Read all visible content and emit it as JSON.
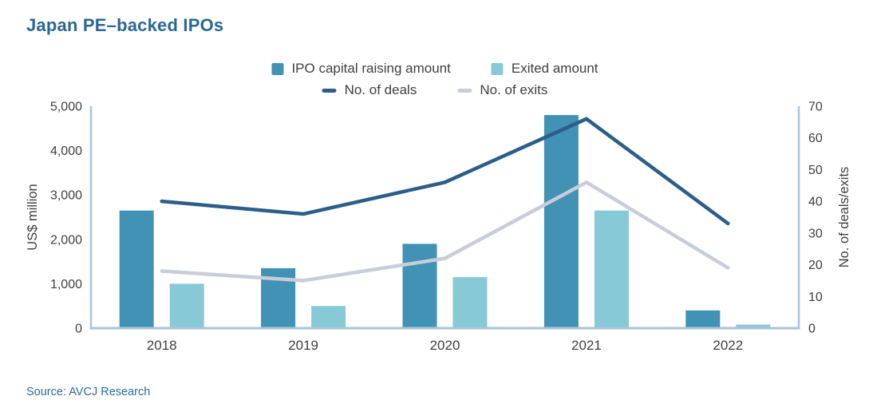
{
  "title": "Japan PE–backed IPOs",
  "source": "Source: AVCJ Research",
  "colors": {
    "title_blue": "#2b6794",
    "source_blue": "#2e6c9c",
    "text_gray": "#3f3f3f",
    "axis_line": "#a9c5d8",
    "ipo_capital_bar": "#4192b4",
    "exited_bar": "#88c9d7",
    "deals_line": "#2b5e88",
    "exits_line": "#c9cdd9"
  },
  "legend": {
    "row1": [
      {
        "label": "IPO capital raising amount",
        "swatch": "square",
        "color": "#4192b4"
      },
      {
        "label": "Exited amount",
        "swatch": "square",
        "color": "#88c9d7"
      }
    ],
    "row2": [
      {
        "label": "No. of deals",
        "swatch": "line",
        "color": "#2b5e88"
      },
      {
        "label": "No. of exits",
        "swatch": "line",
        "color": "#c9cdd9"
      }
    ]
  },
  "chart_data": {
    "type": "combo-bar-line",
    "title": "Japan PE–backed IPOs",
    "categories": [
      "2018",
      "2019",
      "2020",
      "2021",
      "2022"
    ],
    "bar_series": [
      {
        "name": "IPO capital raising amount",
        "axis": "left",
        "color": "#4192b4",
        "values": [
          2650,
          1350,
          1900,
          4800,
          400
        ]
      },
      {
        "name": "Exited amount",
        "axis": "left",
        "color": "#88c9d7",
        "values": [
          1000,
          500,
          1150,
          2650,
          80
        ]
      }
    ],
    "line_series": [
      {
        "name": "No. of deals",
        "axis": "right",
        "color": "#2b5e88",
        "values": [
          40,
          36,
          46,
          66,
          33
        ]
      },
      {
        "name": "No. of exits",
        "axis": "right",
        "color": "#c9cdd9",
        "values": [
          18,
          15,
          22,
          46,
          19
        ]
      }
    ],
    "left_axis": {
      "label": "US$ million",
      "min": 0,
      "max": 5000,
      "ticks": [
        "0",
        "1,000",
        "2,000",
        "3,000",
        "4,000",
        "5,000"
      ]
    },
    "right_axis": {
      "label": "No. of deals/exits",
      "min": 0,
      "max": 70,
      "ticks": [
        "0",
        "10",
        "20",
        "30",
        "40",
        "50",
        "60",
        "70"
      ]
    },
    "axis_color": "#a9c5d8",
    "grid": false,
    "legend_position": "top-center"
  }
}
